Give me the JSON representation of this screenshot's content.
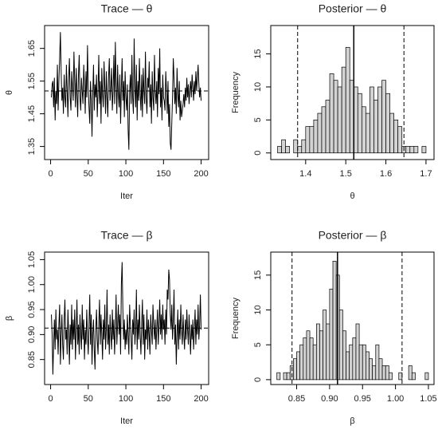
{
  "chart_data": [
    {
      "type": "line",
      "title": "Trace — θ",
      "xlabel": "Iter",
      "ylabel": "θ",
      "color": "#000000",
      "x": [
        1,
        2,
        3,
        4,
        5,
        6,
        7,
        8,
        9,
        10,
        11,
        12,
        13,
        14,
        15,
        16,
        17,
        18,
        19,
        20,
        21,
        22,
        23,
        24,
        25,
        26,
        27,
        28,
        29,
        30,
        31,
        32,
        33,
        34,
        35,
        36,
        37,
        38,
        39,
        40,
        41,
        42,
        43,
        44,
        45,
        46,
        47,
        48,
        49,
        50,
        51,
        52,
        53,
        54,
        55,
        56,
        57,
        58,
        59,
        60,
        61,
        62,
        63,
        64,
        65,
        66,
        67,
        68,
        69,
        70,
        71,
        72,
        73,
        74,
        75,
        76,
        77,
        78,
        79,
        80,
        81,
        82,
        83,
        84,
        85,
        86,
        87,
        88,
        89,
        90,
        91,
        92,
        93,
        94,
        95,
        96,
        97,
        98,
        99,
        100,
        101,
        102,
        103,
        104,
        105,
        106,
        107,
        108,
        109,
        110,
        111,
        112,
        113,
        114,
        115,
        116,
        117,
        118,
        119,
        120,
        121,
        122,
        123,
        124,
        125,
        126,
        127,
        128,
        129,
        130,
        131,
        132,
        133,
        134,
        135,
        136,
        137,
        138,
        139,
        140,
        141,
        142,
        143,
        144,
        145,
        146,
        147,
        148,
        149,
        150,
        151,
        152,
        153,
        154,
        155,
        156,
        157,
        158,
        159,
        160,
        161,
        162,
        163,
        164,
        165,
        166,
        167,
        168,
        169,
        170,
        171,
        172,
        173,
        174,
        175,
        176,
        177,
        178,
        179,
        180,
        181,
        182,
        183,
        184,
        185,
        186,
        187,
        188,
        189,
        190,
        191,
        192,
        193,
        194,
        195,
        196,
        197,
        198,
        199,
        200
      ],
      "values": [
        1.5,
        1.54,
        1.55,
        1.47,
        1.56,
        1.43,
        1.52,
        1.48,
        1.6,
        1.46,
        1.55,
        1.62,
        1.7,
        1.58,
        1.49,
        1.53,
        1.45,
        1.57,
        1.5,
        1.47,
        1.6,
        1.52,
        1.44,
        1.56,
        1.62,
        1.5,
        1.46,
        1.58,
        1.53,
        1.49,
        1.64,
        1.55,
        1.47,
        1.59,
        1.51,
        1.44,
        1.57,
        1.63,
        1.5,
        1.46,
        1.56,
        1.52,
        1.48,
        1.6,
        1.54,
        1.45,
        1.58,
        1.5,
        1.66,
        1.53,
        1.47,
        1.42,
        1.55,
        1.49,
        1.38,
        1.51,
        1.6,
        1.46,
        1.54,
        1.5,
        1.57,
        1.44,
        1.52,
        1.63,
        1.48,
        1.55,
        1.42,
        1.59,
        1.51,
        1.47,
        1.61,
        1.53,
        1.45,
        1.58,
        1.5,
        1.44,
        1.56,
        1.62,
        1.49,
        1.53,
        1.59,
        1.46,
        1.52,
        1.63,
        1.48,
        1.67,
        1.54,
        1.45,
        1.6,
        1.51,
        1.47,
        1.57,
        1.42,
        1.53,
        1.62,
        1.49,
        1.55,
        1.44,
        1.58,
        1.5,
        1.46,
        1.54,
        1.4,
        1.34,
        1.52,
        1.57,
        1.48,
        1.63,
        1.5,
        1.45,
        1.68,
        1.53,
        1.47,
        1.6,
        1.43,
        1.55,
        1.49,
        1.62,
        1.51,
        1.46,
        1.57,
        1.44,
        1.59,
        1.52,
        1.48,
        1.64,
        1.5,
        1.45,
        1.56,
        1.53,
        1.61,
        1.47,
        1.54,
        1.42,
        1.58,
        1.5,
        1.46,
        1.63,
        1.52,
        1.48,
        1.55,
        1.44,
        1.59,
        1.51,
        1.65,
        1.47,
        1.53,
        1.43,
        1.57,
        1.5,
        1.49,
        1.46,
        1.58,
        1.52,
        1.45,
        1.55,
        1.41,
        1.48,
        1.36,
        1.34,
        1.42,
        1.5,
        1.62,
        1.56,
        1.48,
        1.53,
        1.45,
        1.59,
        1.51,
        1.47,
        1.55,
        1.43,
        1.49,
        1.44,
        1.46,
        1.48,
        1.51,
        1.47,
        1.53,
        1.49,
        1.56,
        1.5,
        1.54,
        1.48,
        1.52,
        1.55,
        1.5,
        1.57,
        1.53,
        1.49,
        1.55,
        1.51,
        1.58,
        1.52,
        1.56,
        1.6,
        1.54,
        1.5,
        1.53,
        1.49
      ],
      "mean_line": 1.52,
      "xlim": [
        -8,
        210
      ],
      "xticks": [
        0,
        50,
        100,
        150,
        200
      ],
      "ylim": [
        1.31,
        1.72
      ],
      "yticks": [
        1.35,
        1.45,
        1.55,
        1.65
      ]
    },
    {
      "type": "histogram",
      "title": "Posterior — θ",
      "xlabel": "θ",
      "ylabel": "Frequency",
      "color": "#d3d3d3",
      "bins": [
        1.33,
        1.34,
        1.35,
        1.36,
        1.37,
        1.38,
        1.39,
        1.4,
        1.41,
        1.42,
        1.43,
        1.44,
        1.45,
        1.46,
        1.47,
        1.48,
        1.49,
        1.5,
        1.51,
        1.52,
        1.53,
        1.54,
        1.55,
        1.56,
        1.57,
        1.58,
        1.59,
        1.6,
        1.61,
        1.62,
        1.63,
        1.64,
        1.65,
        1.66,
        1.67,
        1.68,
        1.69,
        1.7
      ],
      "values": [
        1,
        2,
        1,
        0,
        2,
        1,
        2,
        4,
        4,
        5,
        6,
        7,
        8,
        12,
        11,
        10,
        13,
        16,
        11,
        10,
        9,
        7,
        6,
        10,
        8,
        10,
        11,
        9,
        6,
        5,
        4,
        1,
        1,
        1,
        1,
        0,
        1
      ],
      "mean_line": 1.52,
      "interval_lines": [
        1.38,
        1.645
      ],
      "xlim": [
        1.313,
        1.72
      ],
      "xticks": [
        1.4,
        1.5,
        1.6,
        1.7
      ],
      "ylim": [
        -1,
        19.3
      ],
      "yticks": [
        0,
        5,
        10,
        15
      ]
    },
    {
      "type": "line",
      "title": "Trace — β",
      "xlabel": "Iter",
      "ylabel": "β",
      "color": "#000000",
      "x": [
        1,
        2,
        3,
        4,
        5,
        6,
        7,
        8,
        9,
        10,
        11,
        12,
        13,
        14,
        15,
        16,
        17,
        18,
        19,
        20,
        21,
        22,
        23,
        24,
        25,
        26,
        27,
        28,
        29,
        30,
        31,
        32,
        33,
        34,
        35,
        36,
        37,
        38,
        39,
        40,
        41,
        42,
        43,
        44,
        45,
        46,
        47,
        48,
        49,
        50,
        51,
        52,
        53,
        54,
        55,
        56,
        57,
        58,
        59,
        60,
        61,
        62,
        63,
        64,
        65,
        66,
        67,
        68,
        69,
        70,
        71,
        72,
        73,
        74,
        75,
        76,
        77,
        78,
        79,
        80,
        81,
        82,
        83,
        84,
        85,
        86,
        87,
        88,
        89,
        90,
        91,
        92,
        93,
        94,
        95,
        96,
        97,
        98,
        99,
        100,
        101,
        102,
        103,
        104,
        105,
        106,
        107,
        108,
        109,
        110,
        111,
        112,
        113,
        114,
        115,
        116,
        117,
        118,
        119,
        120,
        121,
        122,
        123,
        124,
        125,
        126,
        127,
        128,
        129,
        130,
        131,
        132,
        133,
        134,
        135,
        136,
        137,
        138,
        139,
        140,
        141,
        142,
        143,
        144,
        145,
        146,
        147,
        148,
        149,
        150,
        151,
        152,
        153,
        154,
        155,
        156,
        157,
        158,
        159,
        160,
        161,
        162,
        163,
        164,
        165,
        166,
        167,
        168,
        169,
        170,
        171,
        172,
        173,
        174,
        175,
        176,
        177,
        178,
        179,
        180,
        181,
        182,
        183,
        184,
        185,
        186,
        187,
        188,
        189,
        190,
        191,
        192,
        193,
        194,
        195,
        196,
        197,
        198,
        199,
        200
      ],
      "values": [
        0.94,
        0.9,
        0.82,
        0.88,
        0.93,
        0.87,
        0.95,
        0.89,
        0.91,
        0.86,
        0.92,
        0.96,
        0.84,
        0.9,
        0.94,
        0.88,
        0.85,
        0.93,
        0.97,
        0.89,
        0.91,
        0.86,
        0.95,
        0.9,
        0.84,
        0.92,
        0.88,
        0.96,
        0.87,
        0.93,
        0.89,
        0.95,
        0.85,
        0.91,
        0.97,
        0.88,
        0.92,
        0.86,
        0.94,
        0.9,
        0.87,
        0.96,
        0.89,
        0.93,
        0.85,
        0.91,
        0.88,
        0.95,
        0.9,
        0.86,
        0.92,
        0.98,
        0.88,
        0.94,
        0.84,
        0.9,
        0.93,
        0.87,
        0.83,
        0.91,
        0.95,
        0.89,
        0.86,
        0.92,
        0.97,
        0.88,
        0.94,
        0.9,
        0.85,
        0.93,
        0.89,
        0.96,
        0.87,
        0.91,
        0.99,
        0.88,
        0.92,
        0.86,
        0.94,
        0.9,
        0.87,
        0.95,
        0.89,
        0.93,
        0.86,
        0.91,
        0.98,
        0.88,
        0.92,
        0.96,
        0.9,
        0.94,
        0.86,
        1.0,
        1.045,
        0.95,
        0.89,
        0.93,
        0.87,
        0.91,
        0.88,
        0.94,
        0.9,
        0.86,
        0.96,
        0.92,
        0.89,
        0.85,
        0.93,
        0.9,
        0.95,
        0.88,
        0.91,
        0.99,
        0.87,
        0.93,
        0.89,
        0.96,
        0.9,
        0.86,
        0.92,
        0.97,
        0.88,
        0.94,
        0.85,
        0.91,
        0.89,
        0.95,
        0.87,
        0.93,
        0.9,
        0.86,
        0.94,
        0.91,
        0.88,
        0.96,
        0.92,
        0.89,
        0.93,
        0.87,
        0.91,
        0.95,
        0.88,
        0.92,
        0.97,
        0.9,
        0.94,
        0.89,
        0.96,
        0.91,
        0.93,
        0.88,
        0.95,
        0.9,
        0.99,
        0.97,
        1.03,
        1.01,
        0.94,
        0.91,
        0.96,
        0.89,
        0.93,
        0.99,
        0.88,
        0.92,
        0.84,
        0.9,
        0.95,
        0.87,
        0.93,
        0.89,
        0.96,
        0.91,
        0.88,
        0.94,
        0.9,
        0.87,
        0.93,
        0.89,
        0.95,
        0.91,
        0.88,
        0.94,
        0.9,
        0.86,
        0.92,
        0.89,
        0.93,
        0.87,
        0.91,
        0.95,
        0.88,
        0.93,
        0.9,
        0.96,
        0.89,
        0.92,
        0.98,
        0.91
      ],
      "mean_line": 0.913,
      "xlim": [
        -8,
        210
      ],
      "xticks": [
        0,
        50,
        100,
        150,
        200
      ],
      "ylim": [
        0.8,
        1.065
      ],
      "yticks": [
        0.85,
        {
          "value": 0.9,
          "label": "0.90"
        },
        0.95,
        {
          "value": 1.0,
          "label": "1.00"
        },
        1.05
      ]
    },
    {
      "type": "histogram",
      "title": "Posterior — β",
      "xlabel": "β",
      "ylabel": "Frequency",
      "color": "#d3d3d3",
      "bins": [
        0.82,
        0.825,
        0.83,
        0.835,
        0.84,
        0.845,
        0.85,
        0.855,
        0.86,
        0.865,
        0.87,
        0.875,
        0.88,
        0.885,
        0.89,
        0.895,
        0.9,
        0.905,
        0.91,
        0.915,
        0.92,
        0.925,
        0.93,
        0.935,
        0.94,
        0.945,
        0.95,
        0.955,
        0.96,
        0.965,
        0.97,
        0.975,
        0.98,
        0.985,
        0.99,
        0.995,
        1.0,
        1.005,
        1.01,
        1.015,
        1.02,
        1.025,
        1.03,
        1.035,
        1.04,
        1.045,
        1.05
      ],
      "values": [
        1,
        0,
        1,
        1,
        2,
        3,
        4,
        5,
        6,
        7,
        6,
        5,
        8,
        7,
        10,
        8,
        13,
        17,
        15,
        10,
        7,
        4,
        5,
        6,
        8,
        5,
        5,
        4,
        3,
        2,
        5,
        3,
        2,
        2,
        1,
        0,
        0,
        1,
        0,
        0,
        2,
        1,
        0,
        0,
        0,
        1
      ],
      "mean_line": 0.912,
      "interval_lines": [
        0.843,
        1.01
      ],
      "xlim": [
        0.8107,
        1.0585
      ],
      "xticks": [
        0.85,
        {
          "value": 0.9,
          "label": "0.90"
        },
        0.95,
        {
          "value": 1.0,
          "label": "1.00"
        },
        1.05
      ],
      "ylim": [
        -0.7,
        18.3
      ],
      "yticks": [
        0,
        5,
        10,
        15
      ]
    }
  ]
}
